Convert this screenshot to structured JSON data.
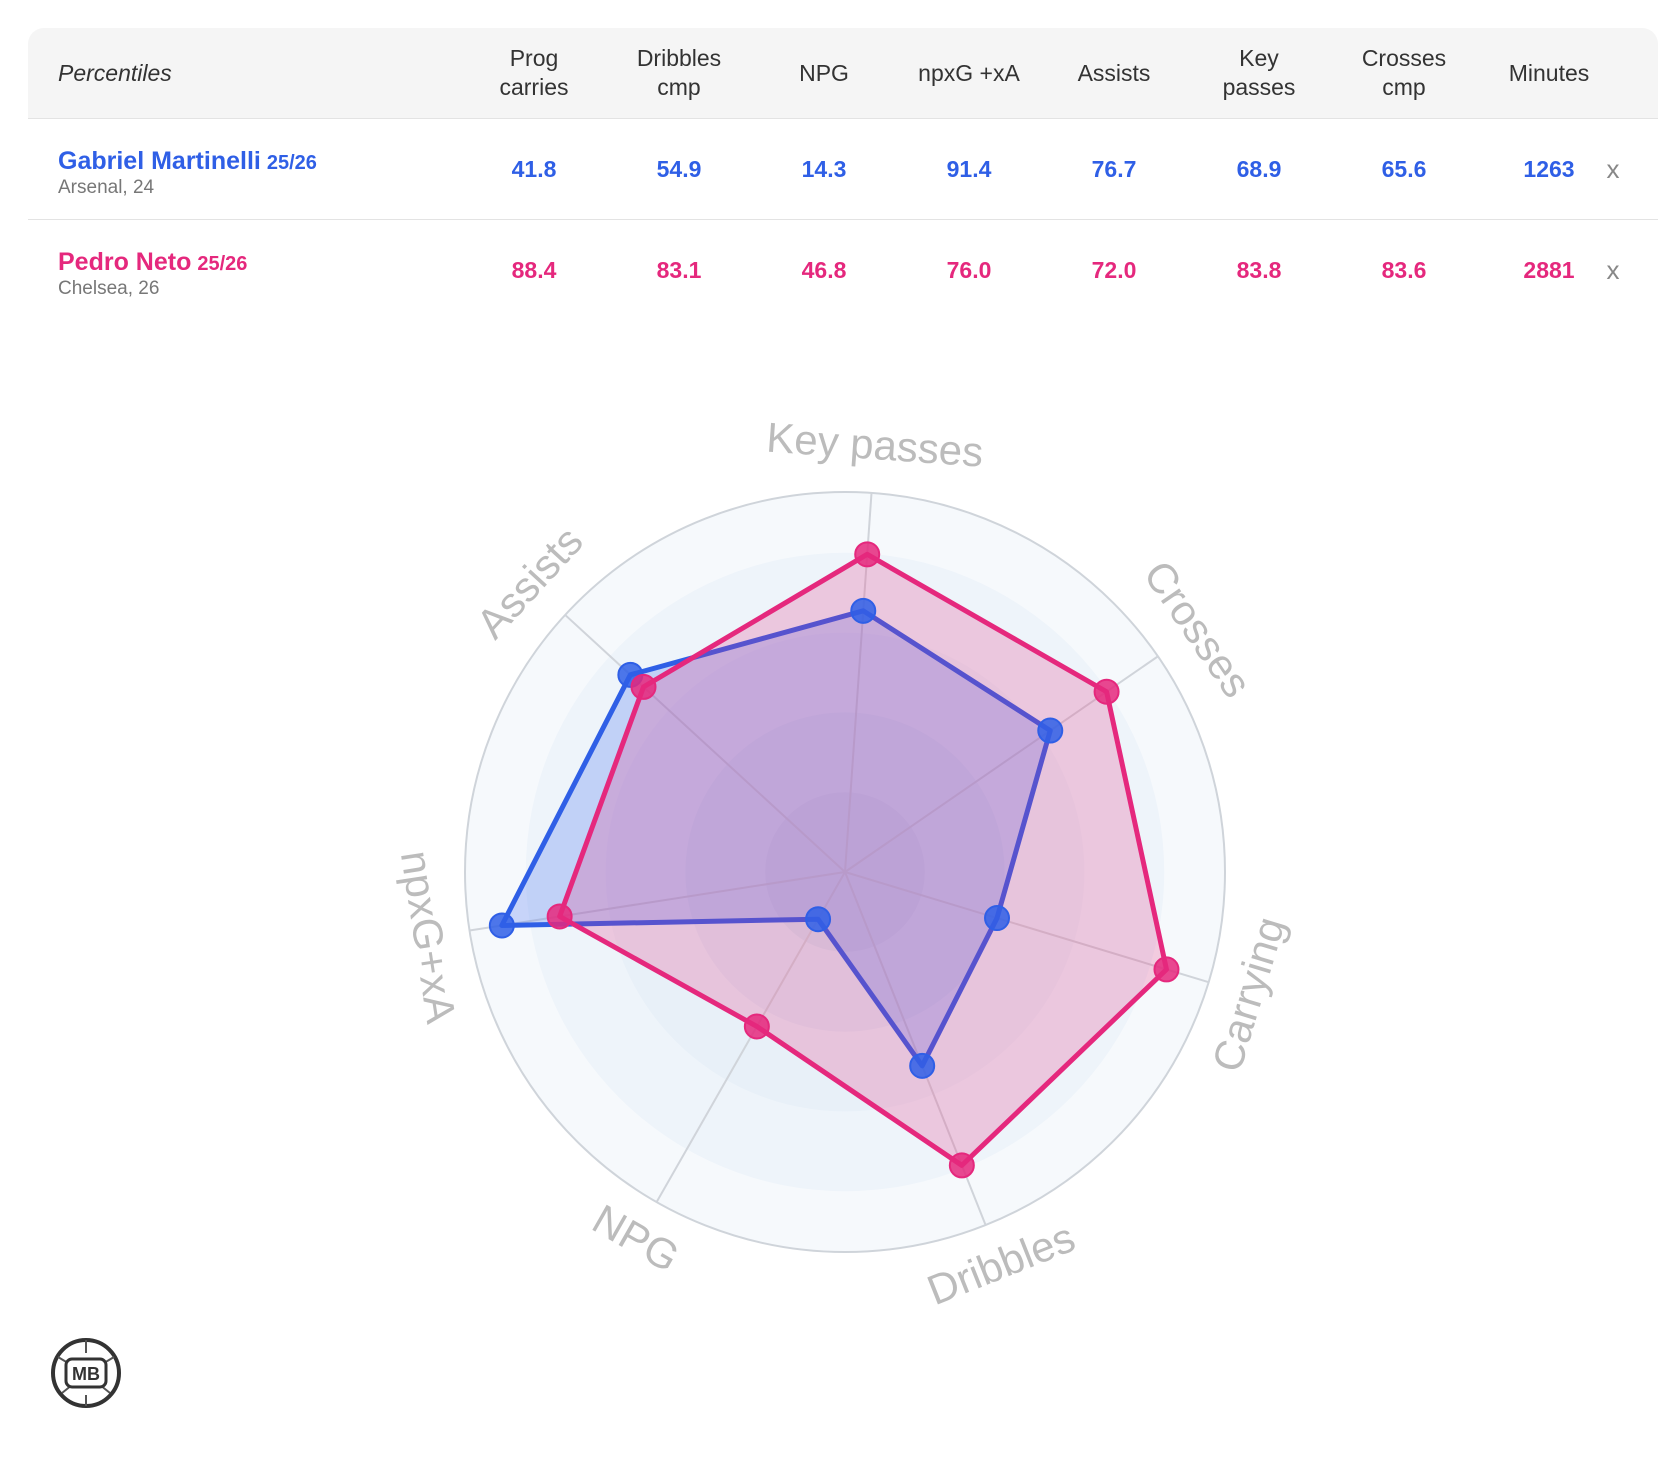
{
  "table": {
    "header_label": "Percentiles",
    "columns": [
      "Prog\ncarries",
      "Dribbles\ncmp",
      "NPG",
      "npxG +xA",
      "Assists",
      "Key\npasses",
      "Crosses\ncmp",
      "Minutes"
    ],
    "close_label": "x",
    "players": [
      {
        "name": "Gabriel Martinelli",
        "season": "25/26",
        "sub": "Arsenal, 24",
        "color": "#2f5fe6",
        "values": [
          "41.8",
          "54.9",
          "14.3",
          "91.4",
          "76.7",
          "68.9",
          "65.6",
          "1263"
        ]
      },
      {
        "name": "Pedro Neto",
        "season": "25/26",
        "sub": "Chelsea, 26",
        "color": "#e5287d",
        "values": [
          "88.4",
          "83.1",
          "46.8",
          "76.0",
          "72.0",
          "83.8",
          "83.6",
          "2881"
        ]
      }
    ]
  },
  "chart_data": {
    "type": "radar",
    "axes": [
      "Key passes",
      "Crosses",
      "Carrying",
      "Dribbles",
      "NPG",
      "npxG+xA",
      "Assists"
    ],
    "range": [
      0,
      100
    ],
    "series": [
      {
        "name": "Gabriel Martinelli",
        "color": "#2f5fe6",
        "values": [
          68.9,
          65.6,
          41.8,
          54.9,
          14.3,
          91.4,
          76.7
        ]
      },
      {
        "name": "Pedro Neto",
        "color": "#e5287d",
        "values": [
          83.8,
          83.6,
          88.4,
          83.1,
          46.8,
          76.0,
          72.0
        ]
      }
    ]
  },
  "logo": {
    "text": "MB",
    "icon": "mb-logo-icon"
  }
}
